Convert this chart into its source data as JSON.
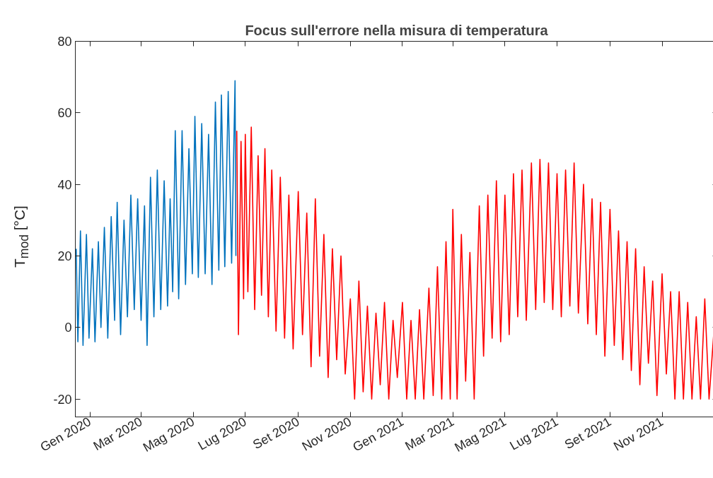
{
  "chart_data": {
    "type": "line",
    "title": "Focus sull'errore nella misura di temperatura",
    "ylabel": "T$_{mod}$ [°C]",
    "xlim": [
      "2019-12-15",
      "2022-01-05"
    ],
    "ylim": [
      -25,
      80
    ],
    "yticks": [
      -20,
      0,
      20,
      40,
      60,
      80
    ],
    "xticks": [
      {
        "value": "2020-01-01",
        "label": "Gen 2020"
      },
      {
        "value": "2020-03-01",
        "label": "Mar 2020"
      },
      {
        "value": "2020-05-01",
        "label": "Mag 2020"
      },
      {
        "value": "2020-07-01",
        "label": "Lug 2020"
      },
      {
        "value": "2020-09-01",
        "label": "Set 2020"
      },
      {
        "value": "2020-11-01",
        "label": "Nov 2020"
      },
      {
        "value": "2021-01-01",
        "label": "Gen 2021"
      },
      {
        "value": "2021-03-01",
        "label": "Mar 2021"
      },
      {
        "value": "2021-05-01",
        "label": "Mag 2021"
      },
      {
        "value": "2021-07-01",
        "label": "Lug 2021"
      },
      {
        "value": "2021-09-01",
        "label": "Set 2021"
      },
      {
        "value": "2021-11-01",
        "label": "Nov 2021"
      }
    ],
    "grid": false,
    "series": [
      {
        "color": "#0072bd",
        "x": [
          "2019-12-16",
          "2019-12-18",
          "2019-12-21",
          "2019-12-24",
          "2019-12-28",
          "2019-12-31",
          "2020-01-04",
          "2020-01-07",
          "2020-01-11",
          "2020-01-14",
          "2020-01-18",
          "2020-01-22",
          "2020-01-26",
          "2020-01-30",
          "2020-02-02",
          "2020-02-06",
          "2020-02-10",
          "2020-02-14",
          "2020-02-18",
          "2020-02-22",
          "2020-02-26",
          "2020-03-01",
          "2020-03-05",
          "2020-03-08",
          "2020-03-12",
          "2020-03-16",
          "2020-03-20",
          "2020-03-24",
          "2020-03-28",
          "2020-04-01",
          "2020-04-04",
          "2020-04-07",
          "2020-04-10",
          "2020-04-14",
          "2020-04-18",
          "2020-04-22",
          "2020-04-26",
          "2020-04-30",
          "2020-05-03",
          "2020-05-07",
          "2020-05-11",
          "2020-05-15",
          "2020-05-19",
          "2020-05-23",
          "2020-05-27",
          "2020-05-31",
          "2020-06-03",
          "2020-06-07",
          "2020-06-11",
          "2020-06-15",
          "2020-06-19",
          "2020-06-20"
        ],
        "values": [
          22,
          -4,
          27,
          -5,
          26,
          -3,
          22,
          -4,
          24,
          0,
          28,
          -3,
          31,
          2,
          35,
          -2,
          30,
          3,
          37,
          5,
          36,
          2,
          34,
          -5,
          42,
          3,
          44,
          5,
          41,
          6,
          36,
          10,
          55,
          8,
          55,
          12,
          50,
          15,
          59,
          14,
          57,
          15,
          54,
          12,
          63,
          16,
          65,
          17,
          66,
          18,
          69,
          20
        ]
      },
      {
        "color": "#ff0000",
        "x": [
          "2020-06-21",
          "2020-06-23",
          "2020-06-26",
          "2020-06-29",
          "2020-07-01",
          "2020-07-04",
          "2020-07-08",
          "2020-07-12",
          "2020-07-16",
          "2020-07-20",
          "2020-07-24",
          "2020-07-28",
          "2020-08-01",
          "2020-08-06",
          "2020-08-11",
          "2020-08-16",
          "2020-08-21",
          "2020-08-26",
          "2020-09-01",
          "2020-09-06",
          "2020-09-11",
          "2020-09-16",
          "2020-09-21",
          "2020-09-26",
          "2020-10-01",
          "2020-10-06",
          "2020-10-11",
          "2020-10-16",
          "2020-10-21",
          "2020-10-26",
          "2020-11-01",
          "2020-11-06",
          "2020-11-11",
          "2020-11-16",
          "2020-11-21",
          "2020-11-26",
          "2020-12-01",
          "2020-12-06",
          "2020-12-11",
          "2020-12-16",
          "2020-12-21",
          "2020-12-26",
          "2021-01-01",
          "2021-01-06",
          "2021-01-11",
          "2021-01-16",
          "2021-01-21",
          "2021-01-26",
          "2021-02-01",
          "2021-02-06",
          "2021-02-11",
          "2021-02-16",
          "2021-02-21",
          "2021-02-26",
          "2021-03-01",
          "2021-03-06",
          "2021-03-11",
          "2021-03-16",
          "2021-03-21",
          "2021-03-26",
          "2021-04-01",
          "2021-04-06",
          "2021-04-11",
          "2021-04-16",
          "2021-04-21",
          "2021-04-26",
          "2021-05-01",
          "2021-05-06",
          "2021-05-11",
          "2021-05-16",
          "2021-05-21",
          "2021-05-26",
          "2021-06-01",
          "2021-06-06",
          "2021-06-11",
          "2021-06-16",
          "2021-06-21",
          "2021-06-26",
          "2021-07-01",
          "2021-07-06",
          "2021-07-11",
          "2021-07-16",
          "2021-07-21",
          "2021-07-26",
          "2021-08-01",
          "2021-08-06",
          "2021-08-11",
          "2021-08-16",
          "2021-08-21",
          "2021-08-26",
          "2021-09-01",
          "2021-09-06",
          "2021-09-11",
          "2021-09-16",
          "2021-09-21",
          "2021-09-26",
          "2021-10-01",
          "2021-10-06",
          "2021-10-11",
          "2021-10-16",
          "2021-10-21",
          "2021-10-26",
          "2021-11-01",
          "2021-11-06",
          "2021-11-11",
          "2021-11-16",
          "2021-11-21",
          "2021-11-26",
          "2021-12-01",
          "2021-12-06",
          "2021-12-11",
          "2021-12-16",
          "2021-12-21",
          "2021-12-26",
          "2022-01-01",
          "2022-01-04"
        ],
        "values": [
          55,
          -2,
          52,
          8,
          54,
          10,
          56,
          5,
          48,
          9,
          50,
          3,
          44,
          -1,
          42,
          -3,
          37,
          -6,
          38,
          -2,
          32,
          -11,
          36,
          -8,
          26,
          -14,
          22,
          -9,
          20,
          -13,
          8,
          -20,
          13,
          -18,
          6,
          -20,
          4,
          -16,
          7,
          -20,
          2,
          -14,
          7,
          -20,
          2,
          -20,
          5,
          -20,
          11,
          -19,
          17,
          -20,
          24,
          -20,
          33,
          -20,
          26,
          -15,
          21,
          -20,
          34,
          -8,
          37,
          -3,
          41,
          -4,
          37,
          -2,
          43,
          3,
          44,
          2,
          46,
          5,
          47,
          7,
          46,
          5,
          43,
          3,
          44,
          6,
          46,
          4,
          40,
          1,
          36,
          -2,
          35,
          -8,
          33,
          -5,
          27,
          -9,
          24,
          -12,
          22,
          -16,
          17,
          -10,
          13,
          -19,
          15,
          -13,
          10,
          -20,
          10,
          -20,
          7,
          -20,
          3,
          -20,
          8,
          -20,
          0,
          -20
        ]
      }
    ]
  }
}
